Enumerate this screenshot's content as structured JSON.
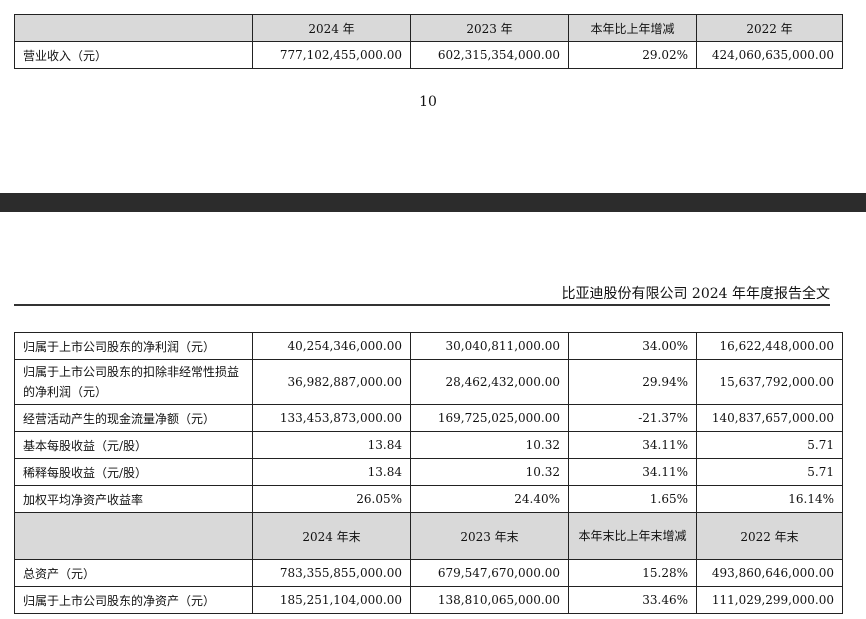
{
  "top_table": {
    "columns": [
      "",
      "2024 年",
      "2023 年",
      "本年比上年增减",
      "2022 年"
    ],
    "rows": [
      {
        "label": "营业收入（元）",
        "cells": [
          "777,102,455,000.00",
          "602,315,354,000.00",
          "29.02%",
          "424,060,635,000.00"
        ]
      }
    ]
  },
  "page_number": "10",
  "running_header": "比亚迪股份有限公司 2024 年年度报告全文",
  "main_table": {
    "rows": [
      {
        "label": "归属于上市公司股东的净利润（元）",
        "cells": [
          "40,254,346,000.00",
          "30,040,811,000.00",
          "34.00%",
          "16,622,448,000.00"
        ]
      },
      {
        "label": "归属于上市公司股东的扣除非经常性损益的净利润（元）",
        "cells": [
          "36,982,887,000.00",
          "28,462,432,000.00",
          "29.94%",
          "15,637,792,000.00"
        ]
      },
      {
        "label": "经营活动产生的现金流量净额（元）",
        "cells": [
          "133,453,873,000.00",
          "169,725,025,000.00",
          "-21.37%",
          "140,837,657,000.00"
        ]
      },
      {
        "label": "基本每股收益（元/股）",
        "cells": [
          "13.84",
          "10.32",
          "34.11%",
          "5.71"
        ]
      },
      {
        "label": "稀释每股收益（元/股）",
        "cells": [
          "13.84",
          "10.32",
          "34.11%",
          "5.71"
        ]
      },
      {
        "label": "加权平均净资产收益率",
        "cells": [
          "26.05%",
          "24.40%",
          "1.65%",
          "16.14%"
        ]
      }
    ],
    "subheader": [
      "",
      "2024 年末",
      "2023 年末",
      "本年末比上年末增减",
      "2022 年末"
    ],
    "rows2": [
      {
        "label": "总资产（元）",
        "cells": [
          "783,355,855,000.00",
          "679,547,670,000.00",
          "15.28%",
          "493,860,646,000.00"
        ]
      },
      {
        "label": "归属于上市公司股东的净资产（元）",
        "cells": [
          "185,251,104,000.00",
          "138,810,065,000.00",
          "33.46%",
          "111,029,299,000.00"
        ]
      }
    ]
  }
}
